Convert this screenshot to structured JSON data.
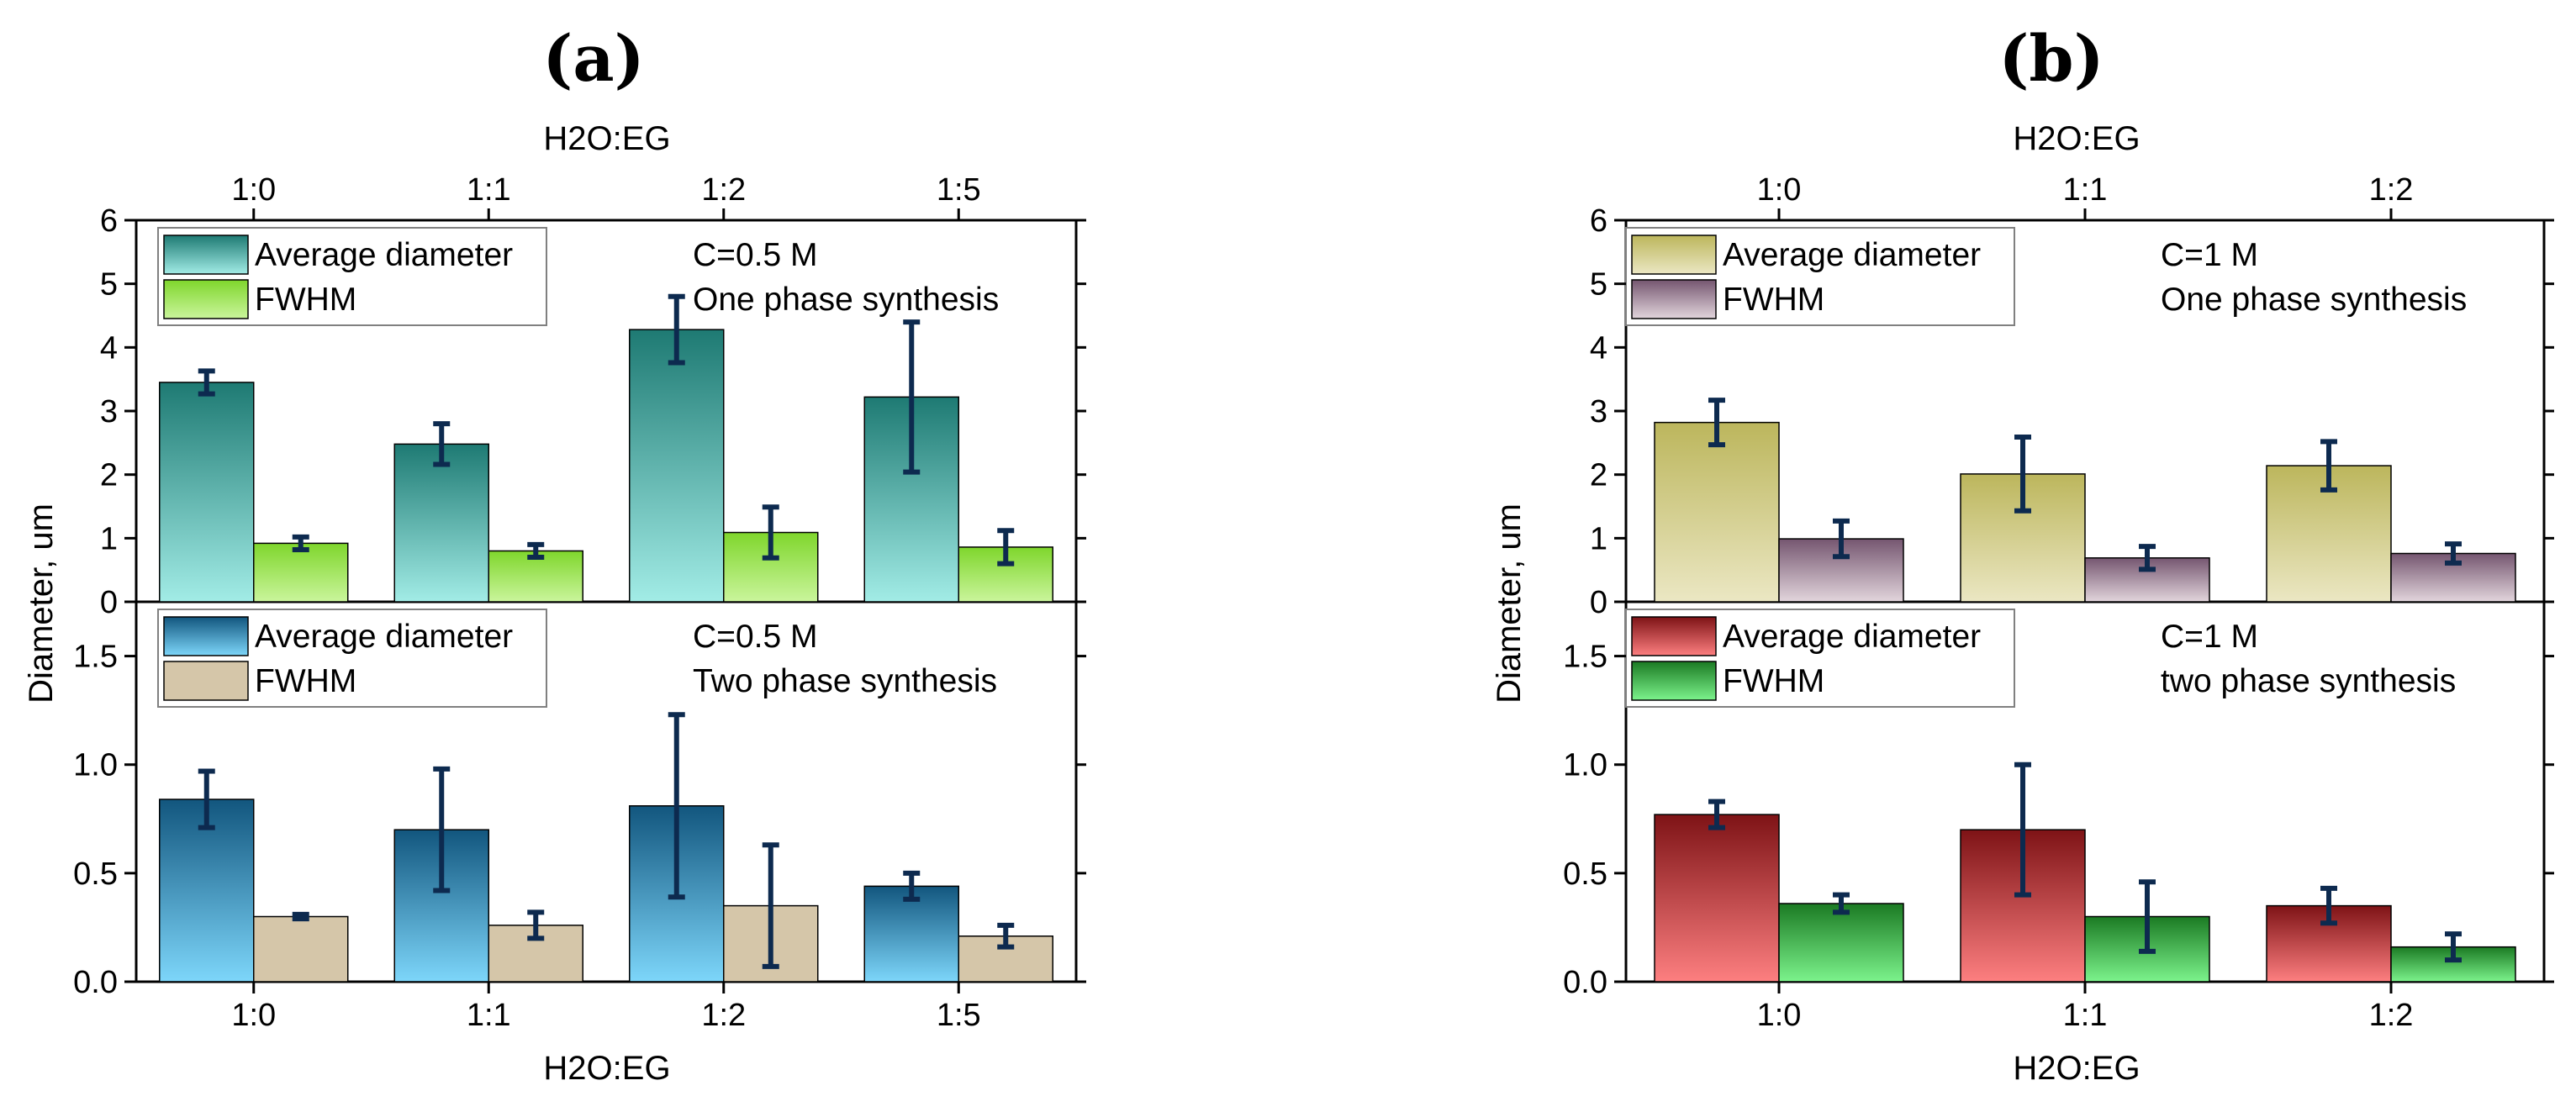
{
  "figure": {
    "panel_labels": [
      "(a)",
      "(b)"
    ],
    "colors": {
      "axis": "#000000",
      "error_bar": "#0d2a4f",
      "legend_border": "#808080"
    }
  },
  "chart_data": [
    {
      "id": "a",
      "type": "bar",
      "panel_label": "(a)",
      "ylabel": "Diameter, um",
      "top_xlabel": "H2O:EG",
      "bottom_xlabel": "H2O:EG",
      "categories": [
        "1:0",
        "1:1",
        "1:2",
        "1:5"
      ],
      "subplots": [
        {
          "position": "top",
          "ylim": [
            0,
            6
          ],
          "yticks": [
            0,
            1,
            2,
            3,
            4,
            5,
            6
          ],
          "ytick_labels": [
            "0",
            "1",
            "2",
            "3",
            "4",
            "5",
            "6"
          ],
          "annotation": [
            "C=0.5 M",
            "One phase synthesis"
          ],
          "series": [
            {
              "name": "Average diameter",
              "values": [
                3.45,
                2.48,
                4.28,
                3.22
              ],
              "errors": [
                0.18,
                0.32,
                0.52,
                1.18
              ],
              "color_top": "#1e7a73",
              "color_bottom": "#a2ece6"
            },
            {
              "name": "FWHM",
              "values": [
                0.92,
                0.8,
                1.09,
                0.86
              ],
              "errors": [
                0.1,
                0.1,
                0.4,
                0.26
              ],
              "color_top": "#7fd62c",
              "color_bottom": "#caf59c"
            }
          ]
        },
        {
          "position": "bottom",
          "ylim": [
            0,
            1.75
          ],
          "yticks": [
            0,
            0.5,
            1.0,
            1.5
          ],
          "ytick_labels": [
            "0.0",
            "0.5",
            "1.0",
            "1.5"
          ],
          "annotation": [
            "C=0.5 M",
            "Two phase synthesis"
          ],
          "series": [
            {
              "name": "Average diameter",
              "values": [
                0.84,
                0.7,
                0.81,
                0.44
              ],
              "errors": [
                0.13,
                0.28,
                0.42,
                0.06
              ],
              "color_top": "#12567e",
              "color_bottom": "#7dd6fa"
            },
            {
              "name": "FWHM",
              "values": [
                0.3,
                0.26,
                0.35,
                0.21
              ],
              "errors": [
                0.01,
                0.06,
                0.28,
                0.05
              ],
              "color_top": "#d5c6a9",
              "color_bottom": "#d5c6a9"
            }
          ]
        }
      ]
    },
    {
      "id": "b",
      "type": "bar",
      "panel_label": "(b)",
      "ylabel": "Diameter, um",
      "top_xlabel": "H2O:EG",
      "bottom_xlabel": "H2O:EG",
      "categories": [
        "1:0",
        "1:1",
        "1:2"
      ],
      "subplots": [
        {
          "position": "top",
          "ylim": [
            0,
            6
          ],
          "yticks": [
            0,
            1,
            2,
            3,
            4,
            5,
            6
          ],
          "ytick_labels": [
            "0",
            "1",
            "2",
            "3",
            "4",
            "5",
            "6"
          ],
          "annotation": [
            "C=1 M",
            "One phase synthesis"
          ],
          "series": [
            {
              "name": "Average diameter",
              "values": [
                2.82,
                2.01,
                2.14
              ],
              "errors": [
                0.35,
                0.58,
                0.38
              ],
              "color_top": "#bcb65c",
              "color_bottom": "#ebe7c3"
            },
            {
              "name": "FWHM",
              "values": [
                0.99,
                0.69,
                0.76
              ],
              "errors": [
                0.28,
                0.18,
                0.15
              ],
              "color_top": "#755670",
              "color_bottom": "#e2d5dc"
            }
          ]
        },
        {
          "position": "bottom",
          "ylim": [
            0,
            1.75
          ],
          "yticks": [
            0,
            0.5,
            1.0,
            1.5
          ],
          "ytick_labels": [
            "0.0",
            "0.5",
            "1.0",
            "1.5"
          ],
          "annotation": [
            "C=1 M",
            "two phase synthesis"
          ],
          "series": [
            {
              "name": "Average diameter",
              "values": [
                0.77,
                0.7,
                0.35
              ],
              "errors": [
                0.06,
                0.3,
                0.08
              ],
              "color_top": "#7e1316",
              "color_bottom": "#fd7f80"
            },
            {
              "name": "FWHM",
              "values": [
                0.36,
                0.3,
                0.16
              ],
              "errors": [
                0.04,
                0.16,
                0.06
              ],
              "color_top": "#1b7a23",
              "color_bottom": "#7cf38c"
            }
          ]
        }
      ]
    }
  ]
}
